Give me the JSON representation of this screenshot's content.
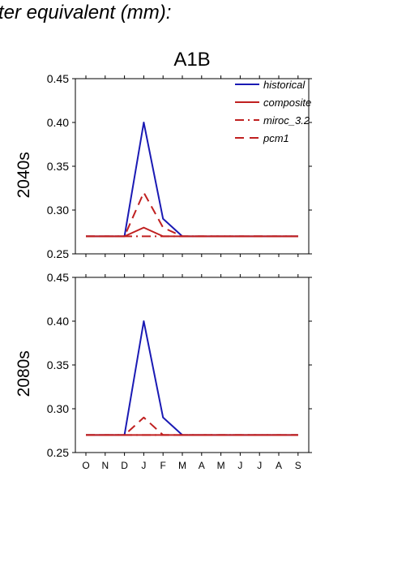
{
  "page": {
    "title": "ter equivalent (mm):"
  },
  "colors": {
    "historical": "#1a1ab4",
    "scenario": "#c02020",
    "axis": "#000000"
  },
  "chart_data": {
    "type": "line",
    "title": "A1B",
    "categories": [
      "O",
      "N",
      "D",
      "J",
      "F",
      "M",
      "A",
      "M",
      "J",
      "J",
      "A",
      "S"
    ],
    "ylim": [
      0.25,
      0.45
    ],
    "yticks": [
      "0.25",
      "0.30",
      "0.35",
      "0.40",
      "0.45"
    ],
    "legend": {
      "placement": "top-right",
      "entries": [
        {
          "label": "historical",
          "color": "#1a1ab4",
          "dash": "solid"
        },
        {
          "label": "composite",
          "color": "#c02020",
          "dash": "solid"
        },
        {
          "label": "miroc_3.2",
          "color": "#c02020",
          "dash": "dashdot"
        },
        {
          "label": "pcm1",
          "color": "#c02020",
          "dash": "dashed"
        }
      ]
    },
    "panels": [
      {
        "ylabel": "2040s",
        "series": [
          {
            "name": "historical",
            "color": "#1a1ab4",
            "dash": "solid",
            "values": [
              0.27,
              0.27,
              0.27,
              0.4,
              0.29,
              0.27,
              0.27,
              0.27,
              0.27,
              0.27,
              0.27,
              0.27
            ]
          },
          {
            "name": "composite",
            "color": "#c02020",
            "dash": "solid",
            "values": [
              0.27,
              0.27,
              0.27,
              0.28,
              0.27,
              0.27,
              0.27,
              0.27,
              0.27,
              0.27,
              0.27,
              0.27
            ]
          },
          {
            "name": "miroc_3.2",
            "color": "#c02020",
            "dash": "dashdot",
            "values": [
              0.27,
              0.27,
              0.27,
              0.27,
              0.27,
              0.27,
              0.27,
              0.27,
              0.27,
              0.27,
              0.27,
              0.27
            ]
          },
          {
            "name": "pcm1",
            "color": "#c02020",
            "dash": "dashed",
            "values": [
              0.27,
              0.27,
              0.27,
              0.32,
              0.28,
              0.27,
              0.27,
              0.27,
              0.27,
              0.27,
              0.27,
              0.27
            ]
          }
        ]
      },
      {
        "ylabel": "2080s",
        "series": [
          {
            "name": "historical",
            "color": "#1a1ab4",
            "dash": "solid",
            "values": [
              0.27,
              0.27,
              0.27,
              0.4,
              0.29,
              0.27,
              0.27,
              0.27,
              0.27,
              0.27,
              0.27,
              0.27
            ]
          },
          {
            "name": "composite",
            "color": "#c02020",
            "dash": "solid",
            "values": [
              0.27,
              0.27,
              0.27,
              0.27,
              0.27,
              0.27,
              0.27,
              0.27,
              0.27,
              0.27,
              0.27,
              0.27
            ]
          },
          {
            "name": "miroc_3.2",
            "color": "#c02020",
            "dash": "dashdot",
            "values": [
              0.27,
              0.27,
              0.27,
              0.27,
              0.27,
              0.27,
              0.27,
              0.27,
              0.27,
              0.27,
              0.27,
              0.27
            ]
          },
          {
            "name": "pcm1",
            "color": "#c02020",
            "dash": "dashed",
            "values": [
              0.27,
              0.27,
              0.27,
              0.29,
              0.27,
              0.27,
              0.27,
              0.27,
              0.27,
              0.27,
              0.27,
              0.27
            ]
          }
        ]
      }
    ]
  }
}
